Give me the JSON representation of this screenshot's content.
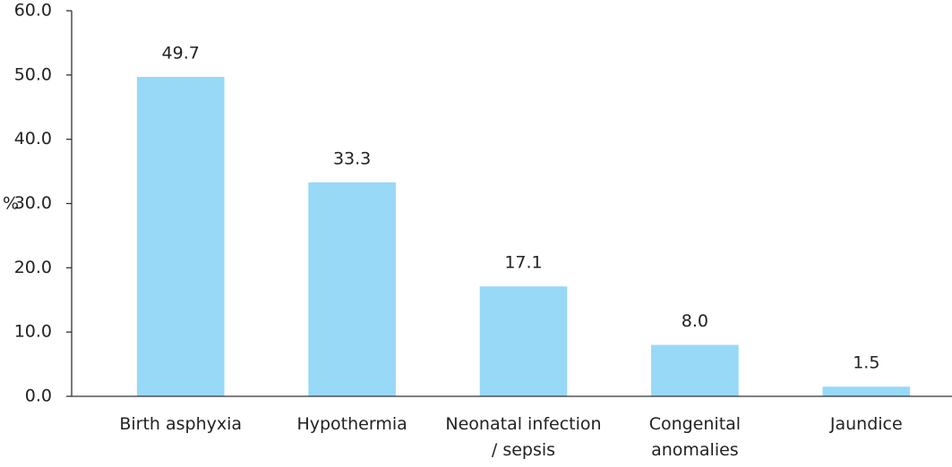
{
  "chart_data": {
    "type": "bar",
    "y_label": "%",
    "categories": [
      "Birth asphyxia",
      "Hypothermia",
      "Neonatal infection / sepsis",
      "Congenital anomalies",
      "Jaundice"
    ],
    "values": [
      49.7,
      33.3,
      17.1,
      8.0,
      1.5
    ],
    "value_labels": [
      "49.7",
      "33.3",
      "17.1",
      "8.0",
      "1.5"
    ],
    "color": "#97d9f6",
    "ylim": [
      0,
      60
    ],
    "yticks": [
      {
        "value": 0,
        "label": "0.0"
      },
      {
        "value": 10,
        "label": "10.0"
      },
      {
        "value": 20,
        "label": "20.0"
      },
      {
        "value": 30,
        "label": "30.0"
      },
      {
        "value": 40,
        "label": "40.0"
      },
      {
        "value": 50,
        "label": "50.0"
      },
      {
        "value": 60,
        "label": "60.0"
      }
    ],
    "grid": false
  }
}
